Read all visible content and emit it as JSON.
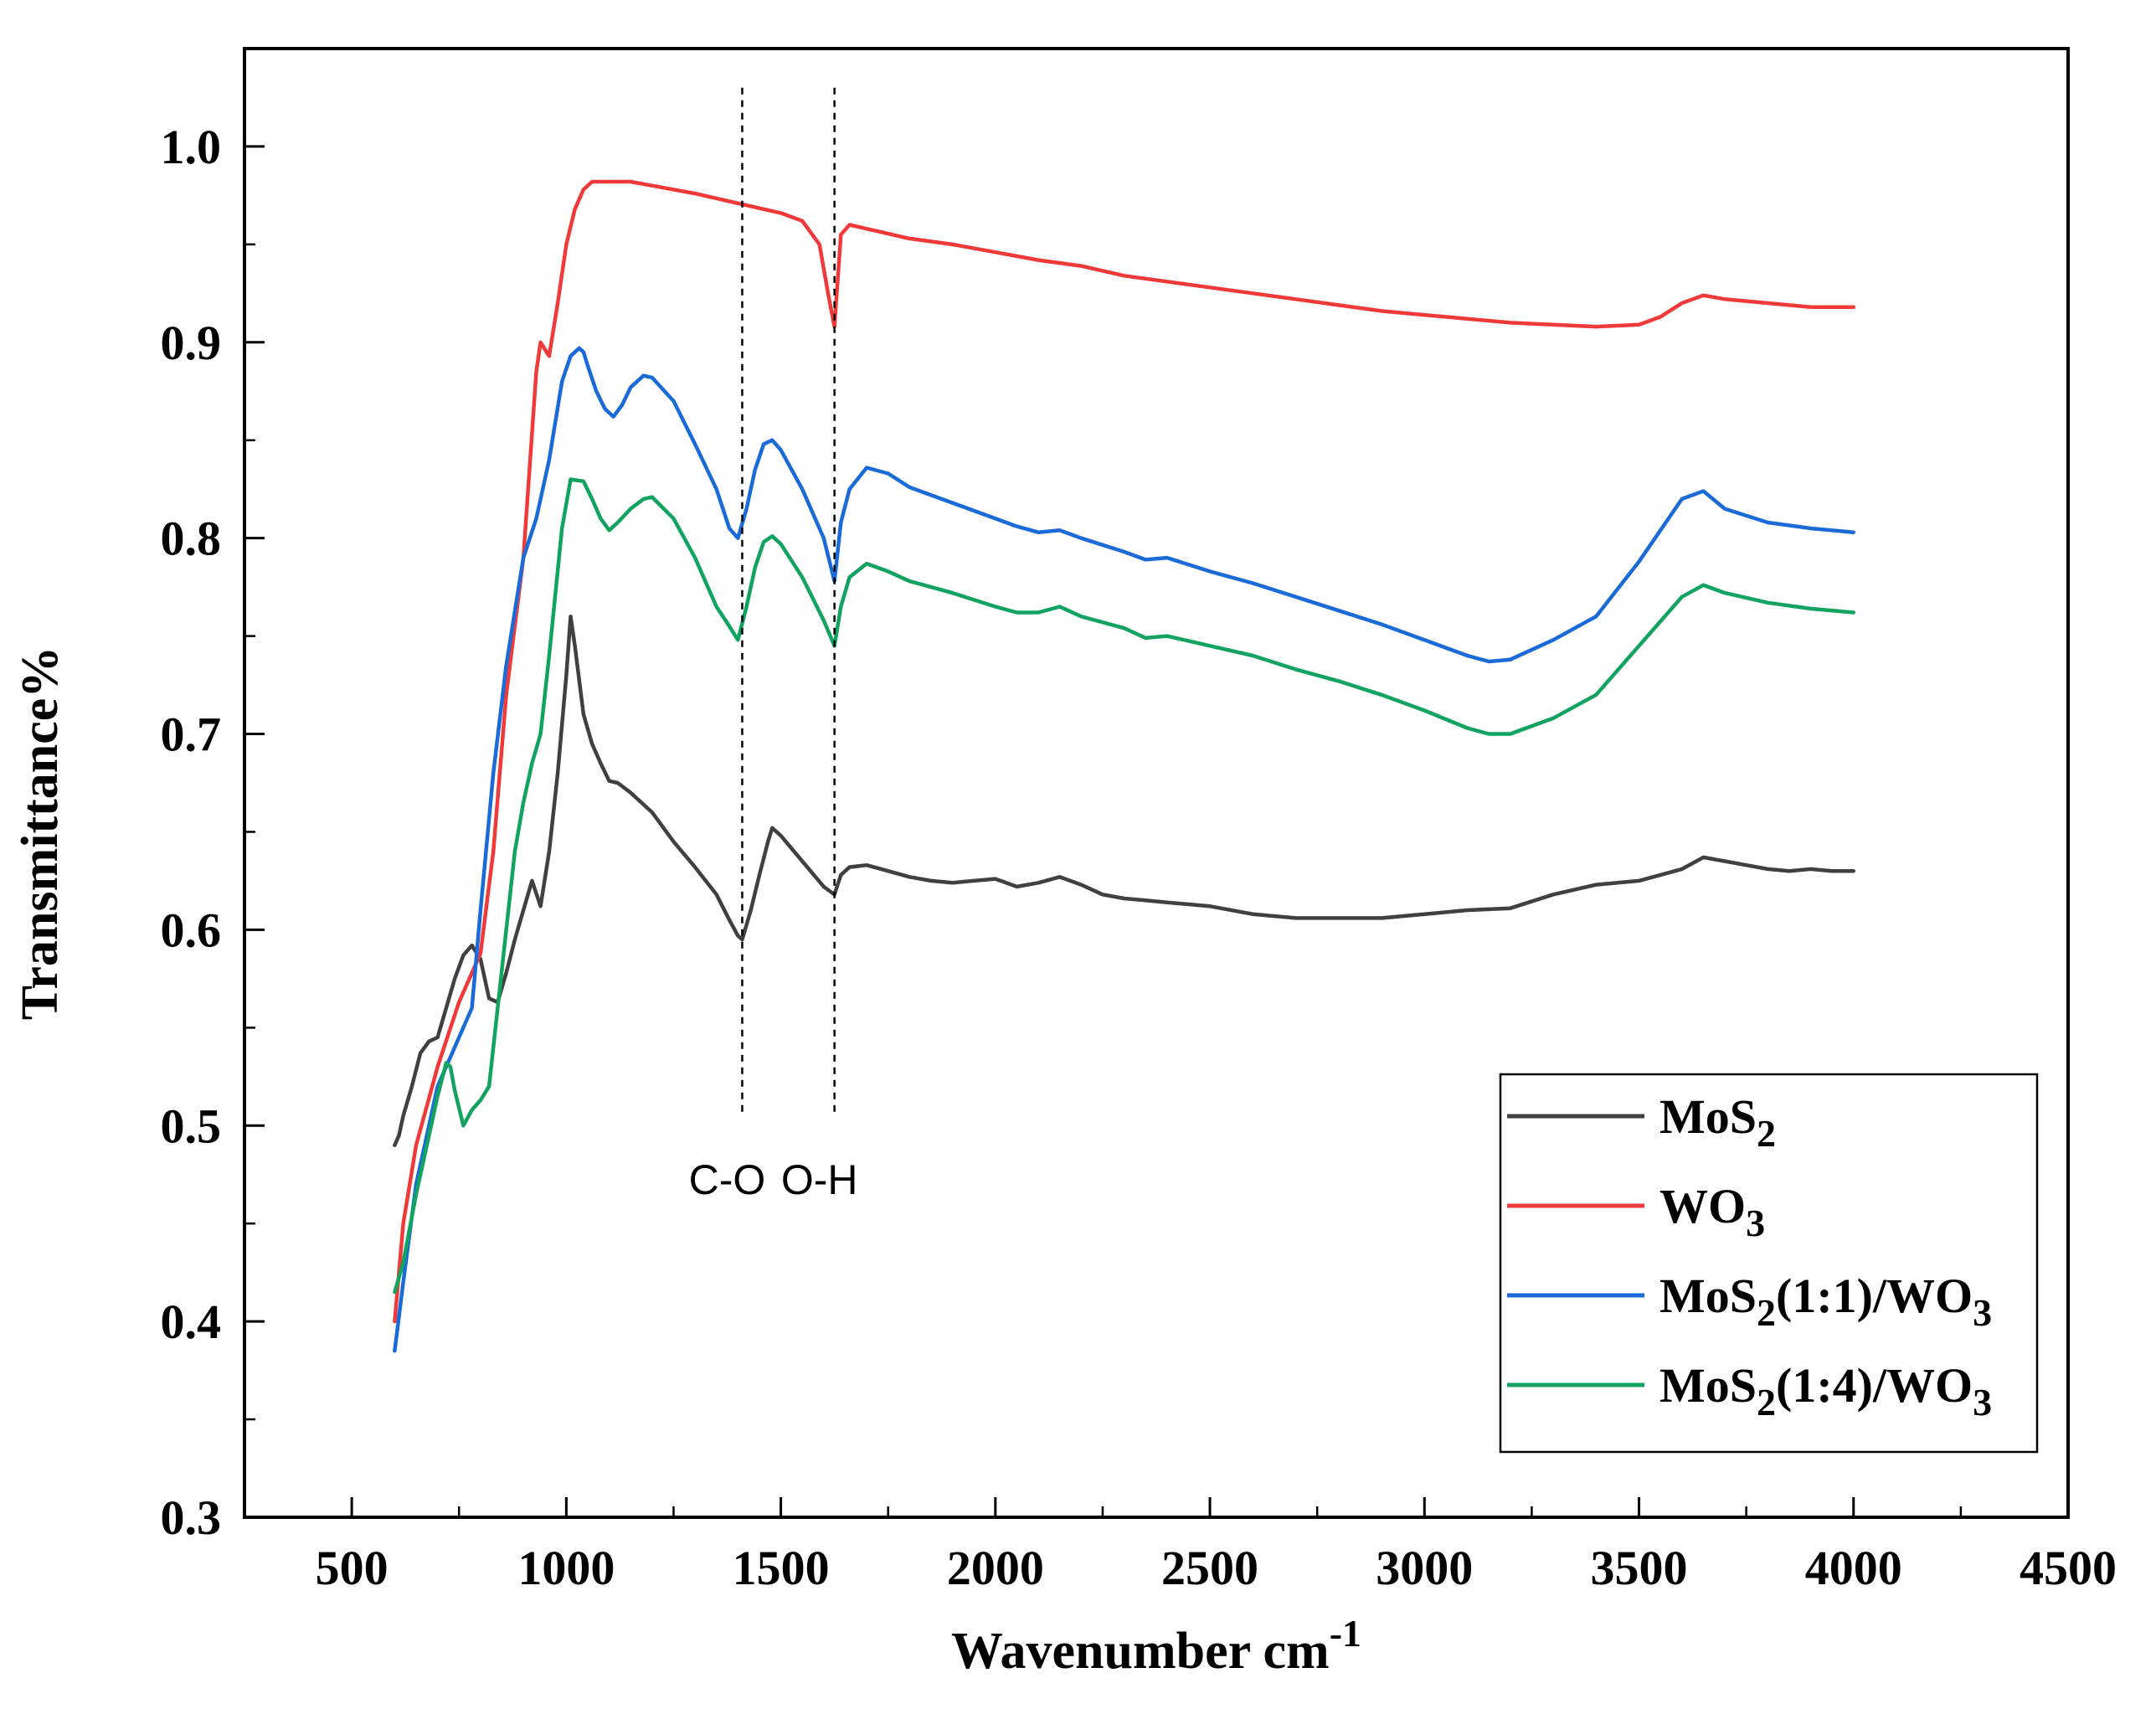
{
  "chart_data": {
    "type": "line",
    "title": "",
    "xlabel": "Wavenumber cm",
    "xlabel_sup": "-1",
    "ylabel": "Transmittance%",
    "xlim": [
      250,
      4500
    ],
    "ylim": [
      0.3,
      1.05
    ],
    "x_ticks": [
      500,
      1000,
      1500,
      2000,
      2500,
      3000,
      3500,
      4000,
      4500
    ],
    "x_tick_labels": [
      "500",
      "1000",
      "1500",
      "2000",
      "2500",
      "3000",
      "3500",
      "4000",
      "4500"
    ],
    "y_ticks": [
      0.3,
      0.4,
      0.5,
      0.6,
      0.7,
      0.8,
      0.9,
      1.0
    ],
    "y_tick_labels": [
      "0.3",
      "0.4",
      "0.5",
      "0.6",
      "0.7",
      "0.8",
      "0.9",
      "1.0"
    ],
    "grid": false,
    "legend_position": "bottom-right",
    "annotations": [
      {
        "label": "C-O",
        "x": 1410
      },
      {
        "label": "O-H",
        "x": 1625
      }
    ],
    "series": [
      {
        "name": "MoS2",
        "legend_main": "MoS",
        "legend_sub": "2",
        "legend_suffix": "",
        "legend_sub2": "",
        "color": "#404040",
        "x": [
          600,
          610,
          620,
          640,
          660,
          680,
          700,
          720,
          740,
          760,
          780,
          800,
          820,
          840,
          860,
          880,
          900,
          920,
          940,
          960,
          980,
          1000,
          1010,
          1020,
          1040,
          1060,
          1080,
          1100,
          1120,
          1150,
          1200,
          1250,
          1300,
          1350,
          1380,
          1400,
          1410,
          1430,
          1450,
          1470,
          1480,
          1500,
          1550,
          1600,
          1625,
          1640,
          1660,
          1700,
          1750,
          1800,
          1850,
          1900,
          1950,
          2000,
          2050,
          2100,
          2150,
          2200,
          2250,
          2300,
          2350,
          2400,
          2500,
          2600,
          2700,
          2800,
          2900,
          3000,
          3100,
          3200,
          3300,
          3400,
          3500,
          3600,
          3650,
          3700,
          3750,
          3800,
          3850,
          3900,
          3950,
          4000
        ],
        "y": [
          0.49,
          0.495,
          0.505,
          0.52,
          0.537,
          0.543,
          0.545,
          0.56,
          0.575,
          0.587,
          0.592,
          0.585,
          0.565,
          0.563,
          0.578,
          0.595,
          0.61,
          0.625,
          0.612,
          0.64,
          0.68,
          0.73,
          0.76,
          0.745,
          0.71,
          0.695,
          0.685,
          0.676,
          0.675,
          0.67,
          0.66,
          0.645,
          0.632,
          0.618,
          0.605,
          0.597,
          0.595,
          0.61,
          0.628,
          0.645,
          0.652,
          0.648,
          0.635,
          0.622,
          0.618,
          0.628,
          0.632,
          0.633,
          0.63,
          0.627,
          0.625,
          0.624,
          0.625,
          0.626,
          0.622,
          0.624,
          0.627,
          0.623,
          0.618,
          0.616,
          0.615,
          0.614,
          0.612,
          0.608,
          0.606,
          0.606,
          0.606,
          0.608,
          0.61,
          0.611,
          0.618,
          0.623,
          0.625,
          0.631,
          0.637,
          0.635,
          0.633,
          0.631,
          0.63,
          0.631,
          0.63,
          0.63
        ]
      },
      {
        "name": "WO3",
        "legend_main": "WO",
        "legend_sub": "3",
        "legend_suffix": "",
        "legend_sub2": "",
        "color": "#f03a3a",
        "x": [
          600,
          620,
          650,
          700,
          750,
          800,
          830,
          860,
          900,
          930,
          940,
          960,
          980,
          1000,
          1020,
          1040,
          1060,
          1100,
          1150,
          1200,
          1300,
          1400,
          1500,
          1550,
          1590,
          1610,
          1625,
          1640,
          1660,
          1700,
          1800,
          1900,
          2000,
          2100,
          2200,
          2300,
          2400,
          2500,
          2600,
          2700,
          2800,
          2900,
          3000,
          3100,
          3200,
          3300,
          3400,
          3500,
          3550,
          3600,
          3650,
          3700,
          3800,
          3900,
          4000
        ],
        "y": [
          0.4,
          0.45,
          0.49,
          0.53,
          0.563,
          0.588,
          0.64,
          0.72,
          0.79,
          0.885,
          0.9,
          0.893,
          0.92,
          0.95,
          0.968,
          0.978,
          0.982,
          0.982,
          0.982,
          0.98,
          0.976,
          0.971,
          0.966,
          0.962,
          0.95,
          0.925,
          0.908,
          0.955,
          0.96,
          0.958,
          0.953,
          0.95,
          0.946,
          0.942,
          0.939,
          0.934,
          0.931,
          0.928,
          0.925,
          0.922,
          0.919,
          0.916,
          0.914,
          0.912,
          0.91,
          0.909,
          0.908,
          0.909,
          0.913,
          0.92,
          0.924,
          0.922,
          0.92,
          0.918,
          0.918
        ]
      },
      {
        "name": "MoS2(1:1)/WO3",
        "legend_main": "MoS",
        "legend_sub": "2",
        "legend_suffix": "(1:1)/WO",
        "legend_sub2": "3",
        "color": "#1a6ad8",
        "x": [
          600,
          620,
          650,
          700,
          750,
          780,
          800,
          830,
          860,
          900,
          930,
          960,
          990,
          1010,
          1030,
          1040,
          1050,
          1070,
          1090,
          1110,
          1130,
          1150,
          1180,
          1200,
          1250,
          1300,
          1350,
          1380,
          1400,
          1420,
          1440,
          1460,
          1480,
          1500,
          1550,
          1600,
          1625,
          1640,
          1660,
          1700,
          1750,
          1800,
          1900,
          2000,
          2050,
          2100,
          2150,
          2200,
          2300,
          2350,
          2400,
          2500,
          2600,
          2700,
          2800,
          2900,
          3000,
          3100,
          3150,
          3200,
          3300,
          3400,
          3500,
          3600,
          3650,
          3700,
          3800,
          3900,
          4000
        ],
        "y": [
          0.385,
          0.42,
          0.47,
          0.52,
          0.545,
          0.56,
          0.61,
          0.68,
          0.735,
          0.79,
          0.81,
          0.84,
          0.88,
          0.893,
          0.897,
          0.895,
          0.888,
          0.875,
          0.866,
          0.862,
          0.868,
          0.877,
          0.883,
          0.882,
          0.87,
          0.848,
          0.825,
          0.805,
          0.8,
          0.815,
          0.835,
          0.848,
          0.85,
          0.845,
          0.825,
          0.8,
          0.778,
          0.808,
          0.825,
          0.836,
          0.833,
          0.826,
          0.818,
          0.81,
          0.806,
          0.803,
          0.804,
          0.8,
          0.793,
          0.789,
          0.79,
          0.783,
          0.777,
          0.77,
          0.763,
          0.756,
          0.748,
          0.74,
          0.737,
          0.738,
          0.748,
          0.76,
          0.788,
          0.82,
          0.824,
          0.815,
          0.808,
          0.805,
          0.803
        ]
      },
      {
        "name": "MoS2(1:4)/WO3",
        "legend_main": "MoS",
        "legend_sub": "2",
        "legend_suffix": "(1:4)/WO",
        "legend_sub2": "3",
        "color": "#12a360",
        "x": [
          600,
          620,
          650,
          680,
          700,
          720,
          730,
          740,
          760,
          780,
          800,
          820,
          850,
          880,
          900,
          920,
          940,
          960,
          990,
          1010,
          1040,
          1060,
          1080,
          1100,
          1120,
          1150,
          1180,
          1200,
          1250,
          1300,
          1350,
          1380,
          1400,
          1420,
          1440,
          1460,
          1480,
          1500,
          1550,
          1600,
          1625,
          1640,
          1660,
          1700,
          1750,
          1800,
          1900,
          2000,
          2050,
          2100,
          2150,
          2200,
          2300,
          2350,
          2400,
          2500,
          2600,
          2700,
          2800,
          2900,
          3000,
          3100,
          3150,
          3200,
          3300,
          3400,
          3500,
          3600,
          3650,
          3700,
          3800,
          3900,
          4000
        ],
        "y": [
          0.415,
          0.43,
          0.465,
          0.495,
          0.515,
          0.532,
          0.53,
          0.518,
          0.5,
          0.508,
          0.513,
          0.52,
          0.58,
          0.64,
          0.665,
          0.685,
          0.7,
          0.74,
          0.805,
          0.83,
          0.829,
          0.82,
          0.81,
          0.804,
          0.808,
          0.815,
          0.82,
          0.821,
          0.81,
          0.79,
          0.765,
          0.755,
          0.748,
          0.765,
          0.785,
          0.798,
          0.801,
          0.797,
          0.78,
          0.758,
          0.745,
          0.765,
          0.78,
          0.787,
          0.783,
          0.778,
          0.772,
          0.765,
          0.762,
          0.762,
          0.765,
          0.76,
          0.754,
          0.749,
          0.75,
          0.745,
          0.74,
          0.733,
          0.727,
          0.72,
          0.712,
          0.703,
          0.7,
          0.7,
          0.708,
          0.72,
          0.745,
          0.77,
          0.776,
          0.772,
          0.767,
          0.764,
          0.762
        ]
      }
    ]
  }
}
